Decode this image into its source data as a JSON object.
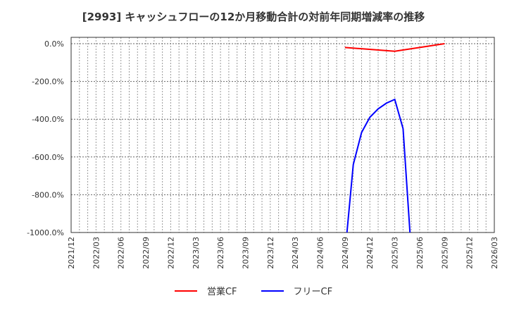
{
  "title": "[2993]  キャッシュフローの12か月移動合計の対前年同期増減率の推移",
  "chart_data": {
    "type": "line",
    "title": "[2993]  キャッシュフローの12か月移動合計の対前年同期増減率の推移",
    "xlabel": "",
    "ylabel": "",
    "ylim": [
      -1000,
      0
    ],
    "grid": true,
    "legend_position": "bottom",
    "y_ticks": [
      "0.0%",
      "-200.0%",
      "-400.0%",
      "-600.0%",
      "-800.0%",
      "-1000.0%"
    ],
    "y_tick_values": [
      0,
      -200,
      -400,
      -600,
      -800,
      -1000
    ],
    "x_ticks": [
      "2021/12",
      "2022/03",
      "2022/06",
      "2022/09",
      "2022/12",
      "2023/03",
      "2023/06",
      "2023/09",
      "2023/12",
      "2024/03",
      "2024/06",
      "2024/09",
      "2024/12",
      "2025/03",
      "2025/06",
      "2025/09",
      "2025/12",
      "2026/03"
    ],
    "x": [
      "2024/09",
      "2024/10",
      "2024/11",
      "2024/12",
      "2025/01",
      "2025/02",
      "2025/03",
      "2025/04",
      "2025/05",
      "2025/06",
      "2025/07",
      "2025/08",
      "2025/09"
    ],
    "series": [
      {
        "name": "営業CF",
        "color": "#ff0000",
        "points": [
          {
            "x": "2024/09",
            "y": -20
          },
          {
            "x": "2025/03",
            "y": -40
          },
          {
            "x": "2025/09",
            "y": 0
          }
        ]
      },
      {
        "name": "フリーCF",
        "color": "#0000ff",
        "points": [
          {
            "x": "2024/09",
            "y": -1000,
            "note": "below axis minimum"
          },
          {
            "x": "2024/10",
            "y": -640
          },
          {
            "x": "2024/11",
            "y": -470
          },
          {
            "x": "2024/12",
            "y": -390
          },
          {
            "x": "2025/01",
            "y": -345
          },
          {
            "x": "2025/02",
            "y": -315
          },
          {
            "x": "2025/03",
            "y": -295
          },
          {
            "x": "2025/04",
            "y": -450
          },
          {
            "x": "2025/05",
            "y": -1000,
            "note": "below axis minimum"
          }
        ]
      }
    ]
  },
  "legend": [
    {
      "label": "営業CF",
      "color": "#ff0000"
    },
    {
      "label": "フリーCF",
      "color": "#0000ff"
    }
  ]
}
